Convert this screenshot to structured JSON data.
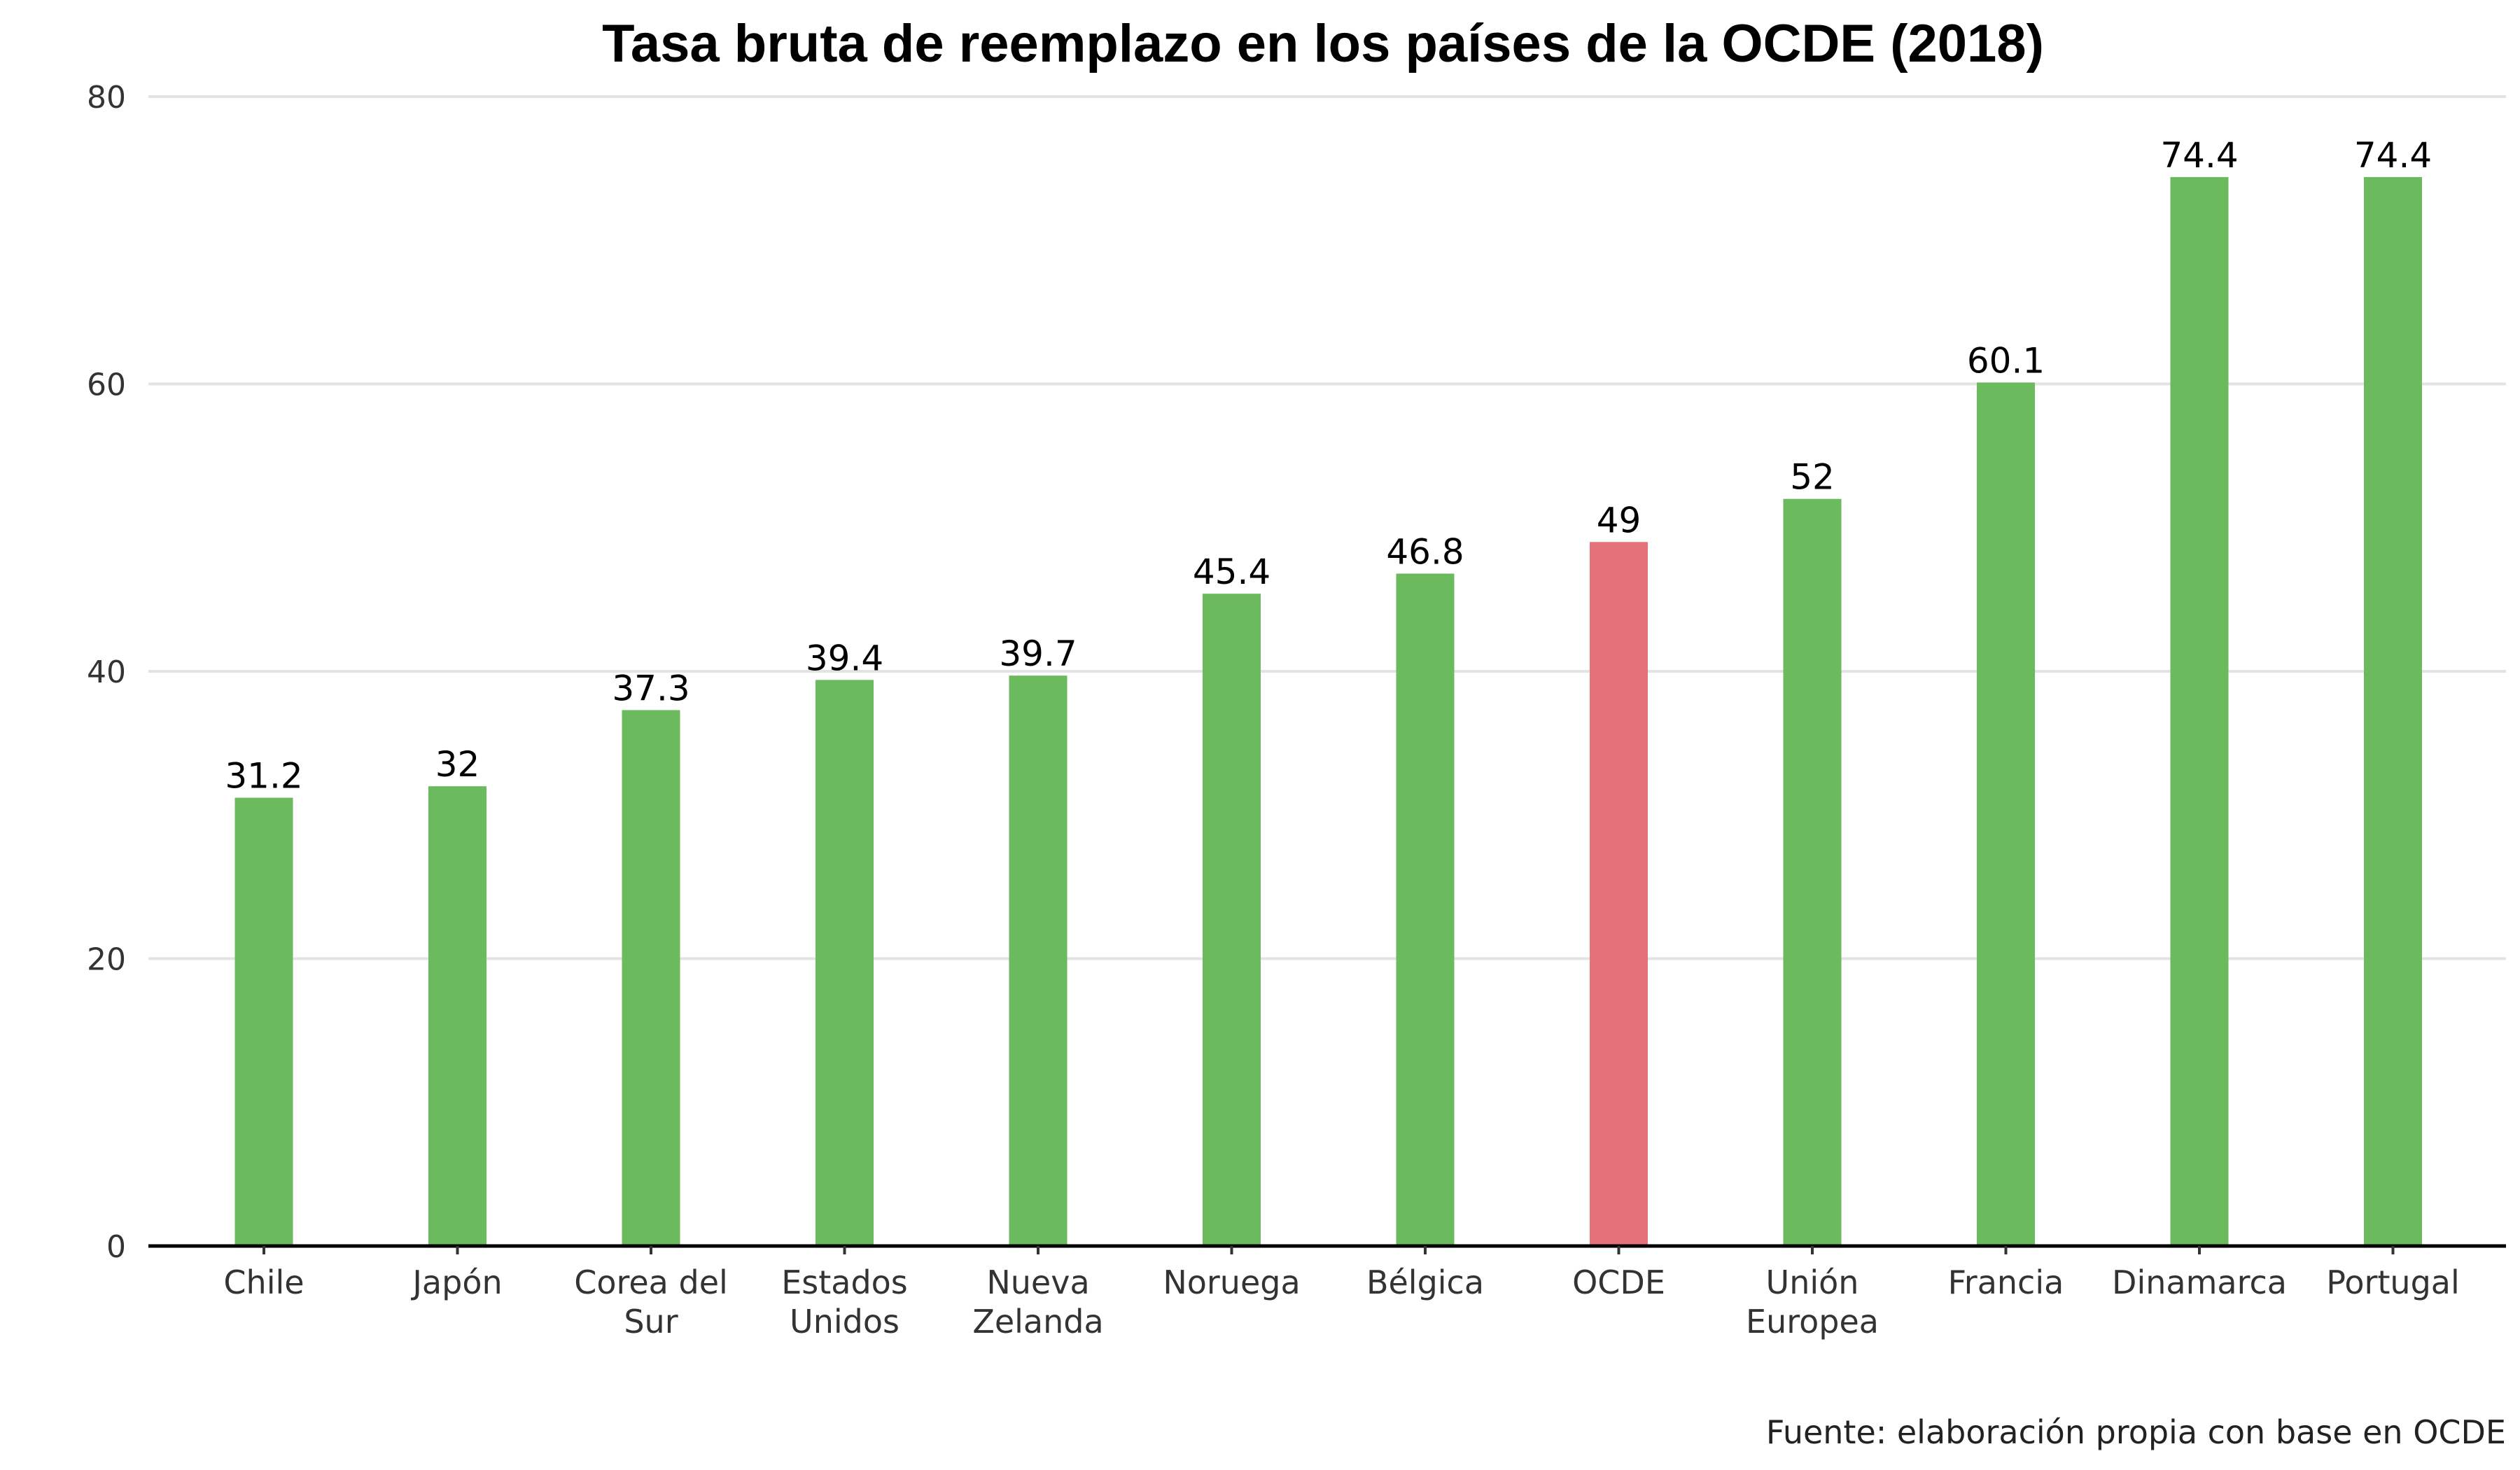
{
  "chart_data": {
    "type": "bar",
    "title": "Tasa bruta de reemplazo en los países de la OCDE (2018)",
    "caption": "Fuente: elaboración propia con base en OCDE",
    "xlabel": "",
    "ylabel": "",
    "ylim": [
      0,
      80
    ],
    "yticks": [
      "0",
      "20",
      "40",
      "60",
      "80"
    ],
    "grid": true,
    "legend": "none",
    "categories": [
      [
        "Chile"
      ],
      [
        "Japón"
      ],
      [
        "Corea del",
        "Sur"
      ],
      [
        "Estados",
        "Unidos"
      ],
      [
        "Nueva",
        "Zelanda"
      ],
      [
        "Noruega"
      ],
      [
        "Bélgica"
      ],
      [
        "OCDE"
      ],
      [
        "Unión",
        "Europea"
      ],
      [
        "Francia"
      ],
      [
        "Dinamarca"
      ],
      [
        "Portugal"
      ]
    ],
    "values": [
      31.2,
      32,
      37.3,
      39.4,
      39.7,
      45.4,
      46.8,
      49,
      52,
      60.1,
      74.4,
      74.4
    ],
    "data_labels": [
      "31.2",
      "32",
      "37.3",
      "39.4",
      "39.7",
      "45.4",
      "46.8",
      "49",
      "52",
      "60.1",
      "74.4",
      "74.4"
    ],
    "colors": {
      "default": "#6cba5e",
      "highlight": "#e5727a",
      "highlight_category": "OCDE"
    }
  }
}
